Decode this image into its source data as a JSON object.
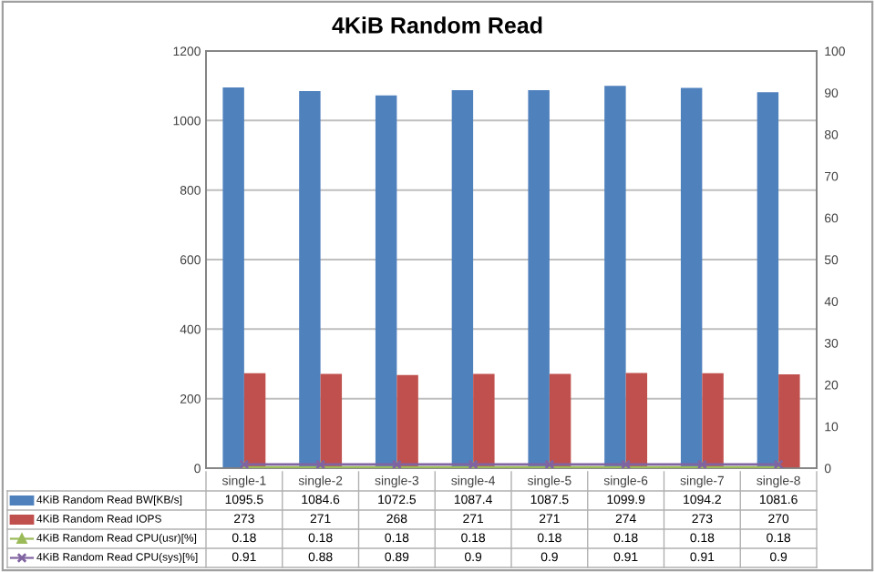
{
  "chart_data": {
    "type": "bar",
    "title": "4KiB Random Read",
    "categories": [
      "single-1",
      "single-2",
      "single-3",
      "single-4",
      "single-5",
      "single-6",
      "single-7",
      "single-8"
    ],
    "series": [
      {
        "name": "4KiB Random Read BW[KB/s]",
        "color": "#4f81bd",
        "values": [
          1095.5,
          1084.6,
          1072.5,
          1087.4,
          1087.5,
          1099.9,
          1094.2,
          1081.6
        ]
      },
      {
        "name": "4KiB Random Read IOPS",
        "color": "#c0504d",
        "values": [
          273,
          271,
          268,
          271,
          271,
          274,
          273,
          270
        ]
      },
      {
        "name": "4KiB Random Read CPU(usr)[%]",
        "type": "line",
        "axis": "y2",
        "marker": "triangle",
        "color": "#9bbb59",
        "values": [
          0.18,
          0.18,
          0.18,
          0.18,
          0.18,
          0.18,
          0.18,
          0.18
        ]
      },
      {
        "name": "4KiB Random Read CPU(sys)[%]",
        "type": "line",
        "axis": "y2",
        "marker": "cross",
        "color": "#8064a2",
        "values": [
          0.91,
          0.88,
          0.89,
          0.9,
          0.9,
          0.91,
          0.91,
          0.9
        ]
      }
    ],
    "ylim": [
      0,
      1200
    ],
    "yticks": [
      0,
      200,
      400,
      600,
      800,
      1000,
      1200
    ],
    "y2lim": [
      0,
      100
    ],
    "y2ticks": [
      0,
      10,
      20,
      30,
      40,
      50,
      60,
      70,
      80,
      90,
      100
    ],
    "grid": "y",
    "legend": "bottom",
    "data_labels": true
  }
}
